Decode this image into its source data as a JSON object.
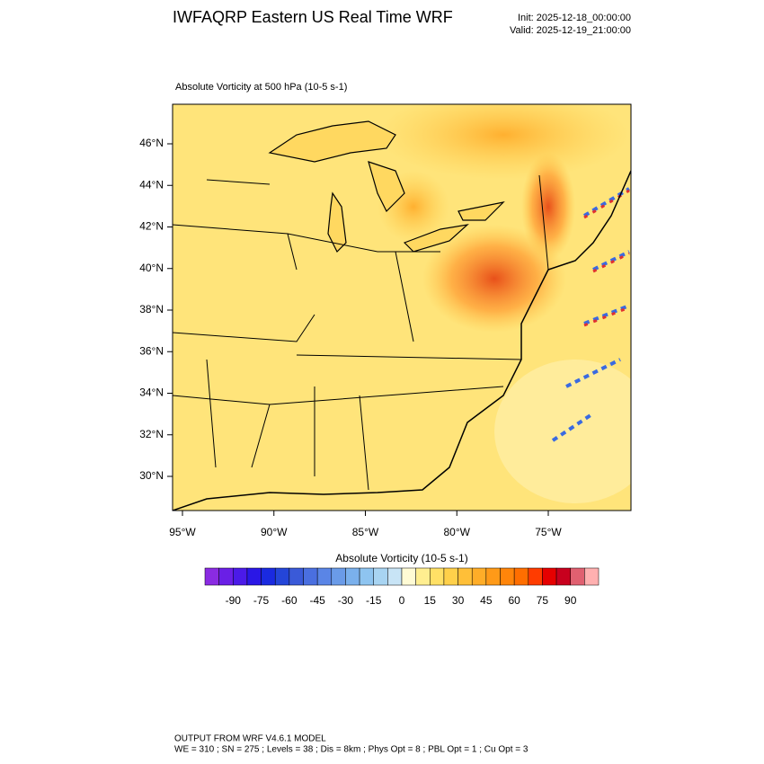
{
  "header": {
    "title": "IWFAQRP Eastern US Real Time WRF",
    "init": "Init: 2025-12-18_00:00:00",
    "valid": "Valid: 2025-12-19_21:00:00"
  },
  "map": {
    "subtitle": "Absolute Vorticity at 500 hPa   (10-5 s-1)",
    "lat_labels": [
      "46°N",
      "44°N",
      "42°N",
      "40°N",
      "38°N",
      "36°N",
      "34°N",
      "32°N",
      "30°N"
    ],
    "lon_labels": [
      "95°W",
      "90°W",
      "85°W",
      "80°W",
      "75°W"
    ]
  },
  "colorbar": {
    "title": "Absolute Vorticity  (10-5 s-1)",
    "lim": [
      -105,
      105
    ],
    "ticks": [
      -90,
      -75,
      -60,
      -45,
      -30,
      -15,
      0,
      15,
      30,
      45,
      60,
      75,
      90
    ],
    "colors": [
      "#8a2be2",
      "#6a1fe6",
      "#4b1ae8",
      "#2a17e6",
      "#1a2ae0",
      "#2445d8",
      "#3a5ad8",
      "#4a6fe0",
      "#5a85e6",
      "#6a9be8",
      "#7ab0ec",
      "#8ec4f0",
      "#a8d4f2",
      "#c8e4f6",
      "#fffbd5",
      "#ffee90",
      "#ffe066",
      "#ffd04a",
      "#ffbf38",
      "#ffad28",
      "#ff9a18",
      "#ff850a",
      "#ff6e00",
      "#ff3c00",
      "#e60000",
      "#c8001e",
      "#e06070",
      "#ffb0b0"
    ]
  },
  "footer": {
    "line1": "OUTPUT FROM WRF V4.6.1 MODEL",
    "line2": "WE = 310 ; SN = 275 ; Levels = 38 ; Dis = 8km ; Phys Opt = 8 ; PBL Opt = 1 ; Cu Opt = 3"
  }
}
